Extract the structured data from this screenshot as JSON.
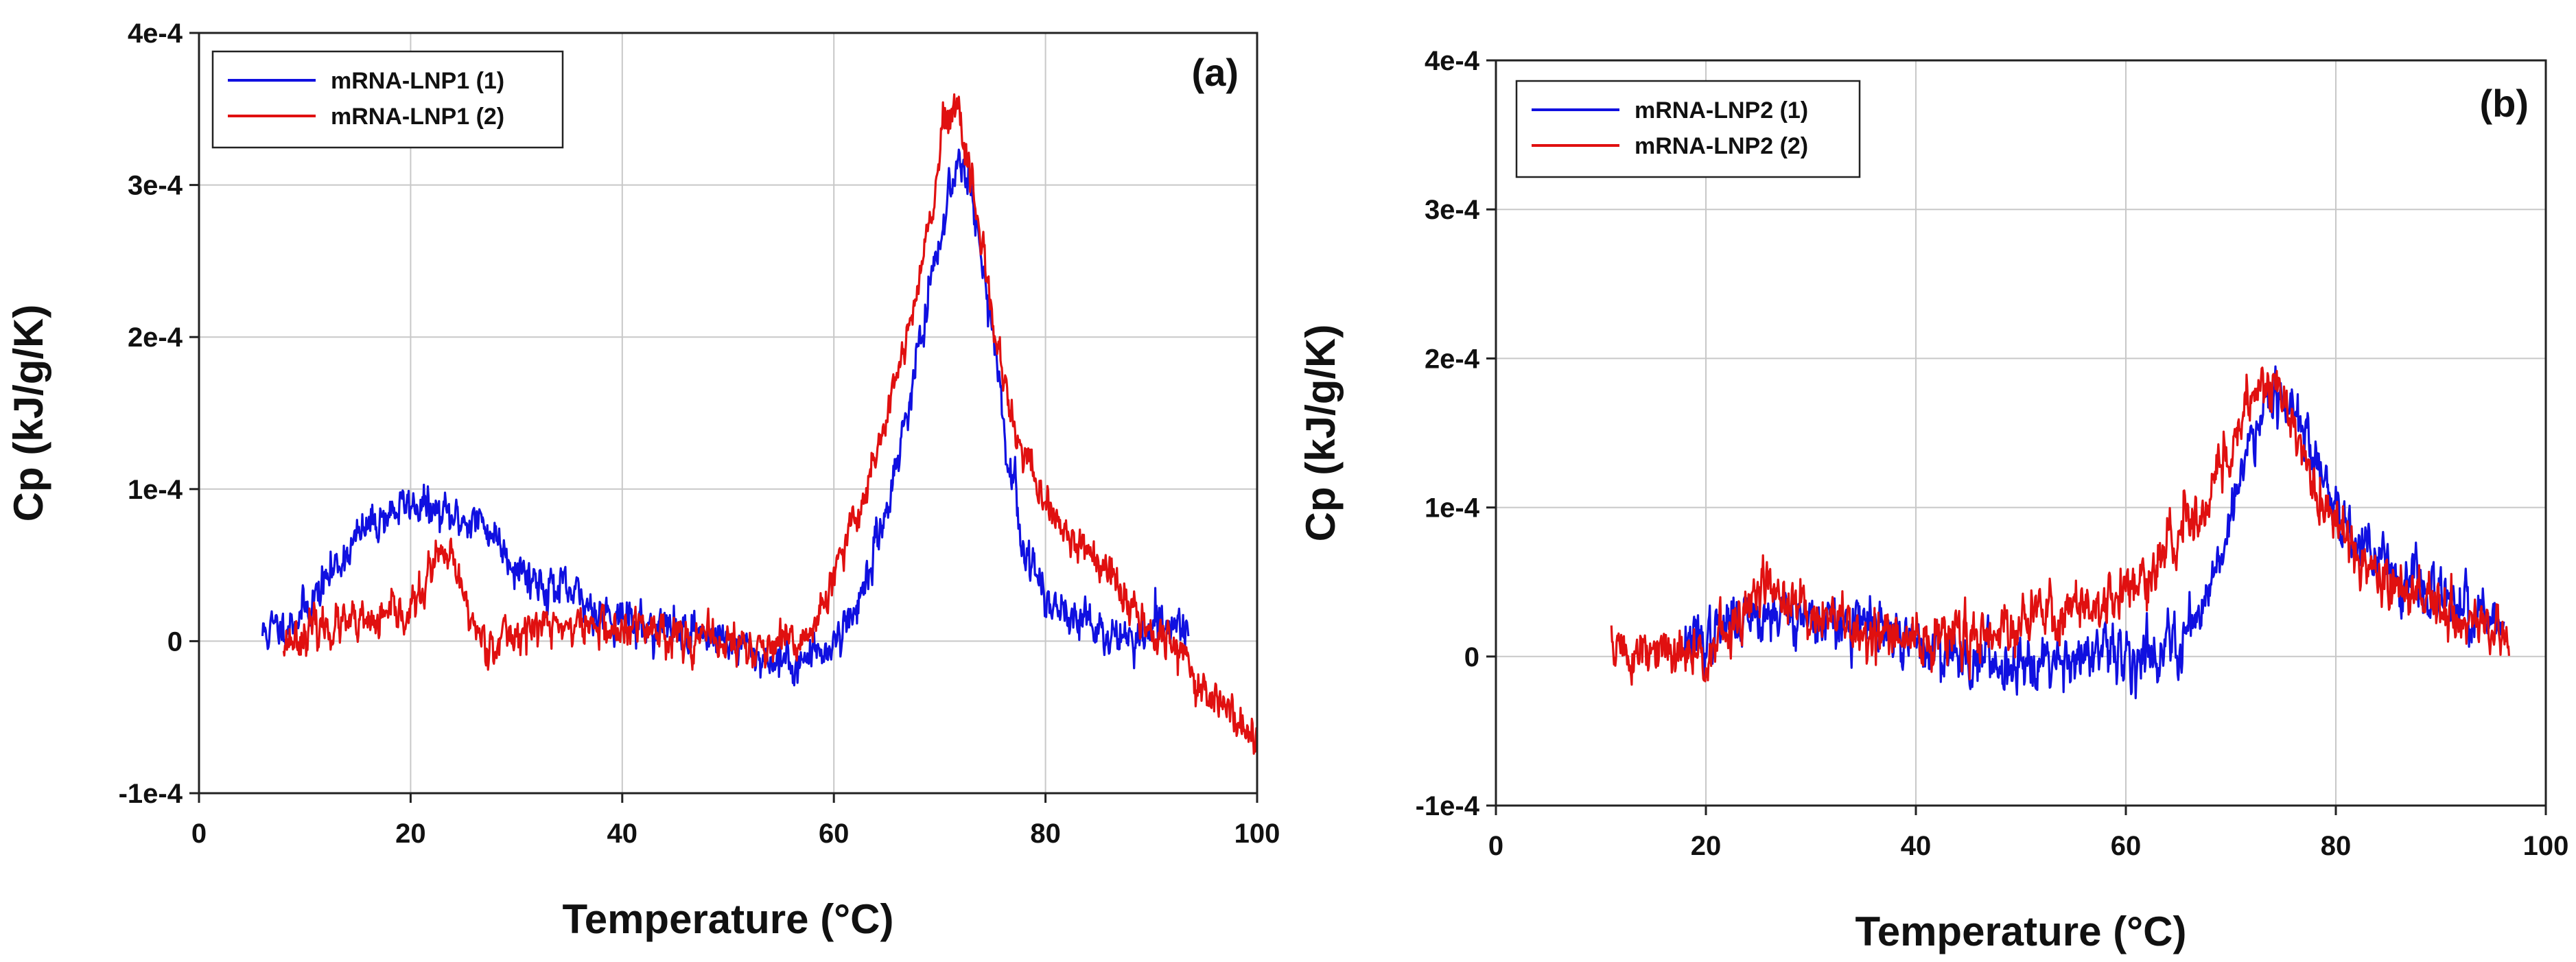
{
  "chart_data": [
    {
      "type": "line",
      "panel_label": "(a)",
      "xlabel": "Temperature (°C)",
      "ylabel": "Cp (kJ/g/K)",
      "xlim": [
        0,
        100
      ],
      "ylim": [
        -0.0001,
        0.0004
      ],
      "xticks": [
        0,
        20,
        40,
        60,
        80,
        100
      ],
      "xtick_labels": [
        "0",
        "20",
        "40",
        "60",
        "80",
        "100"
      ],
      "yticks": [
        -0.0001,
        0,
        0.0001,
        0.0002,
        0.0003,
        0.0004
      ],
      "ytick_labels": [
        "-1e-4",
        "0",
        "1e-4",
        "2e-4",
        "3e-4",
        "4e-4"
      ],
      "grid": true,
      "legend_position": "top-left",
      "series": [
        {
          "name": "mRNA-LNP1 (1)",
          "color": "#1010e0",
          "noise": 8e-06,
          "seed": 11,
          "x": [
            6,
            8,
            10,
            12,
            14,
            16,
            18,
            20,
            21,
            22,
            24,
            26,
            28,
            30,
            32,
            35,
            38,
            40,
            42,
            45,
            48,
            50,
            53,
            56,
            58,
            60,
            62,
            64,
            66,
            68,
            70,
            71,
            72,
            72.5,
            73,
            74,
            75,
            76,
            77,
            78,
            80,
            82,
            84,
            86,
            88,
            90,
            92,
            93.5
          ],
          "y": [
            5e-06,
            1e-05,
            2e-05,
            4e-05,
            6e-05,
            7.5e-05,
            8.5e-05,
            9e-05,
            9e-05,
            8.5e-05,
            8e-05,
            8e-05,
            7e-05,
            5e-05,
            4e-05,
            3e-05,
            2e-05,
            1.5e-05,
            1e-05,
            8e-06,
            5e-06,
            0,
            -1e-05,
            -1.5e-05,
            -1e-05,
            0,
            2e-05,
            6e-05,
            0.00012,
            0.00019,
            0.00026,
            0.0003,
            0.00032,
            0.000315,
            0.0003,
            0.00025,
            0.0002,
            0.00014,
            0.0001,
            6e-05,
            3e-05,
            2e-05,
            1e-05,
            5e-06,
            0,
            5e-06,
            1e-05,
            1e-05
          ]
        },
        {
          "name": "mRNA-LNP1 (2)",
          "color": "#e01010",
          "noise": 8e-06,
          "seed": 23,
          "x": [
            8,
            10,
            12,
            14,
            16,
            18,
            20,
            21,
            22,
            23,
            24,
            25,
            26,
            27,
            28,
            30,
            32,
            35,
            38,
            40,
            42,
            45,
            48,
            50,
            52,
            55,
            57,
            59,
            61,
            63,
            65,
            67,
            69,
            70,
            71,
            72,
            73,
            74,
            75,
            76,
            77,
            78,
            80,
            82,
            84,
            86,
            88,
            90,
            92,
            94,
            96,
            98,
            99,
            100
          ],
          "y": [
            0,
            5e-06,
            1e-05,
            1e-05,
            1e-05,
            1.5e-05,
            2e-05,
            3e-05,
            5e-05,
            5.5e-05,
            5e-05,
            3e-05,
            1e-05,
            0,
            0,
            5e-06,
            1e-05,
            1e-05,
            1e-05,
            5e-06,
            1e-05,
            5e-06,
            0,
            0,
            -5e-06,
            -5e-06,
            0,
            2e-05,
            6e-05,
            0.0001,
            0.00015,
            0.0002,
            0.00027,
            0.00032,
            0.00035,
            0.00034,
            0.0003,
            0.00025,
            0.00021,
            0.00017,
            0.00014,
            0.00012,
            9e-05,
            7e-05,
            6e-05,
            4e-05,
            2.5e-05,
            1e-05,
            0,
            -2e-05,
            -4e-05,
            -5e-05,
            -6e-05,
            -7e-05
          ]
        }
      ]
    },
    {
      "type": "line",
      "panel_label": "(b)",
      "xlabel": "Temperature (°C)",
      "ylabel": "Cp (kJ/g/K)",
      "xlim": [
        0,
        100
      ],
      "ylim": [
        -0.0001,
        0.0004
      ],
      "xticks": [
        0,
        20,
        40,
        60,
        80,
        100
      ],
      "xtick_labels": [
        "0",
        "20",
        "40",
        "60",
        "80",
        "100"
      ],
      "yticks": [
        -0.0001,
        0,
        0.0001,
        0.0002,
        0.0003,
        0.0004
      ],
      "ytick_labels": [
        "-1e-4",
        "0",
        "1e-4",
        "2e-4",
        "3e-4",
        "4e-4"
      ],
      "grid": true,
      "legend_position": "top-left",
      "series": [
        {
          "name": "mRNA-LNP2 (1)",
          "color": "#1010e0",
          "noise": 1.1e-05,
          "seed": 37,
          "x": [
            18,
            20,
            22,
            24,
            26,
            28,
            30,
            33,
            36,
            39,
            42,
            45,
            48,
            51,
            54,
            57,
            60,
            63,
            65,
            67,
            69,
            71,
            72,
            73,
            74,
            75,
            76,
            77,
            78,
            80,
            82,
            85,
            88,
            91,
            94,
            96
          ],
          "y": [
            1e-05,
            1e-05,
            2e-05,
            3e-05,
            3e-05,
            3e-05,
            2.5e-05,
            2e-05,
            2e-05,
            1e-05,
            5e-06,
            0,
            -5e-06,
            0,
            0,
            0,
            0,
            5e-06,
            1e-05,
            3e-05,
            7e-05,
            0.00012,
            0.00015,
            0.00017,
            0.00018,
            0.00018,
            0.000165,
            0.00015,
            0.00013,
            0.0001,
            8e-05,
            6e-05,
            4.5e-05,
            3.5e-05,
            2.5e-05,
            2e-05
          ]
        },
        {
          "name": "mRNA-LNP2 (2)",
          "color": "#e01010",
          "noise": 1.1e-05,
          "seed": 51,
          "x": [
            11,
            13,
            15,
            17,
            19,
            21,
            23,
            24,
            25,
            26,
            27,
            29,
            31,
            33,
            36,
            39,
            42,
            45,
            48,
            51,
            54,
            57,
            60,
            62,
            64,
            66,
            68,
            70,
            71,
            72,
            73,
            74,
            75,
            76,
            77,
            78,
            80,
            82,
            85,
            88,
            91,
            94,
            96.5
          ],
          "y": [
            1e-05,
            0,
            0,
            0,
            0,
            1e-05,
            2e-05,
            3e-05,
            4.5e-05,
            5e-05,
            4e-05,
            3e-05,
            3e-05,
            2e-05,
            1.5e-05,
            1e-05,
            1e-05,
            1.5e-05,
            2e-05,
            2.5e-05,
            3e-05,
            3.5e-05,
            4.5e-05,
            5e-05,
            7e-05,
            9e-05,
            0.00011,
            0.00014,
            0.00016,
            0.00018,
            0.00019,
            0.000185,
            0.000165,
            0.00015,
            0.00013,
            0.00011,
            9e-05,
            7e-05,
            5e-05,
            4e-05,
            3e-05,
            2e-05,
            1e-05
          ]
        }
      ]
    }
  ]
}
